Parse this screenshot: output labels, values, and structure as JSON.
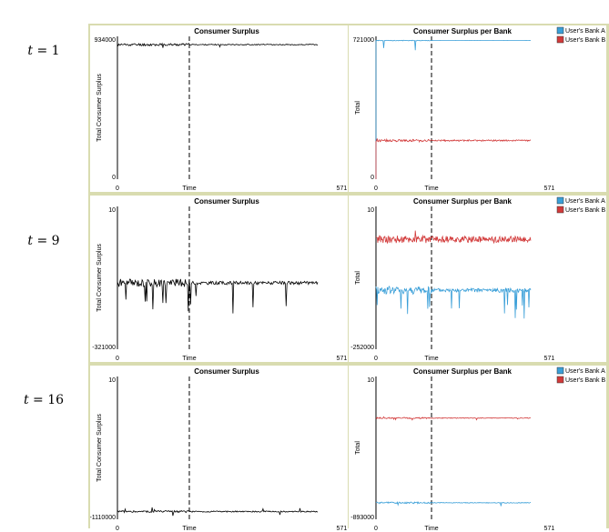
{
  "row_labels": [
    {
      "var": "t",
      "eq": " = ",
      "num": "1"
    },
    {
      "var": "t",
      "eq": " = ",
      "num": "9"
    },
    {
      "var": "t",
      "eq": " = ",
      "num": "16"
    }
  ],
  "chart_data": [
    {
      "type": "line",
      "row": 0,
      "col": 0,
      "title": "Consumer Surplus",
      "xlabel": "Time",
      "ylabel": "Total Consumer Surplus",
      "xlim": [
        0,
        571
      ],
      "ylim": [
        0,
        934000
      ],
      "y_tick_labels": [
        "934000",
        "0"
      ],
      "x_tick_labels": [
        "0",
        "571"
      ],
      "marker_x": 205,
      "series": [
        {
          "name": "Total",
          "color": "#000000",
          "start": 0,
          "level": 880000,
          "noise": 8000,
          "spike_prob": 0.03,
          "spike_mag": 40000,
          "spike_dir": "down",
          "after_factor": 0.4,
          "seed": 11
        }
      ]
    },
    {
      "type": "line",
      "row": 0,
      "col": 1,
      "title": "Consumer Surplus per Bank",
      "xlabel": "Time",
      "ylabel": "Total",
      "xlim": [
        0,
        571
      ],
      "ylim": [
        0,
        721000
      ],
      "y_tick_labels": [
        "721000",
        "0"
      ],
      "x_tick_labels": [
        "0",
        "571"
      ],
      "marker_x": 205,
      "legend": [
        "User's Bank A",
        "User's Bank B"
      ],
      "series": [
        {
          "name": "User's Bank A",
          "color": "#3a9fd8",
          "start": 0,
          "level": 700000,
          "noise": 1500,
          "spike_prob": 0.025,
          "spike_mag": 60000,
          "spike_dir": "down",
          "after_factor": 0.1,
          "seed": 21
        },
        {
          "name": "User's Bank B",
          "color": "#d23a3a",
          "start": 0,
          "level": 195000,
          "noise": 6000,
          "spike_prob": 0.02,
          "spike_mag": 12000,
          "spike_dir": "both",
          "after_factor": 0.6,
          "seed": 22
        }
      ]
    },
    {
      "type": "line",
      "row": 1,
      "col": 0,
      "title": "Consumer Surplus",
      "xlabel": "Time",
      "ylabel": "Total Consumer Surplus",
      "xlim": [
        0,
        571
      ],
      "ylim": [
        -321000,
        10
      ],
      "y_tick_labels": [
        "10",
        "-321000"
      ],
      "x_tick_labels": [
        "0",
        "571"
      ],
      "marker_x": 205,
      "series": [
        {
          "name": "Total",
          "color": "#000000",
          "level": -172000,
          "noise": 9000,
          "spike_prob": 0.07,
          "spike_mag": 70000,
          "spike_dir": "down",
          "after_factor": 0.4,
          "seed": 31
        }
      ]
    },
    {
      "type": "line",
      "row": 1,
      "col": 1,
      "title": "Consumer Surplus per Bank",
      "xlabel": "Time",
      "ylabel": "Total",
      "xlim": [
        0,
        571
      ],
      "ylim": [
        -252000,
        10
      ],
      "y_tick_labels": [
        "10",
        "-252000"
      ],
      "x_tick_labels": [
        "0",
        "571"
      ],
      "marker_x": 205,
      "legend": [
        "User's Bank A",
        "User's Bank B"
      ],
      "series": [
        {
          "name": "User's Bank A",
          "color": "#3a9fd8",
          "level": -148000,
          "noise": 7000,
          "spike_prob": 0.07,
          "spike_mag": 55000,
          "spike_dir": "down",
          "after_factor": 0.5,
          "seed": 41
        },
        {
          "name": "User's Bank B",
          "color": "#d23a3a",
          "level": -58000,
          "noise": 7000,
          "spike_prob": 0.05,
          "spike_mag": 15000,
          "spike_dir": "both",
          "after_factor": 0.8,
          "seed": 42
        }
      ]
    },
    {
      "type": "line",
      "row": 2,
      "col": 0,
      "title": "Consumer Surplus",
      "xlabel": "Time",
      "ylabel": "Total Consumer Surplus",
      "xlim": [
        0,
        571
      ],
      "ylim": [
        -1110000,
        10
      ],
      "y_tick_labels": [
        "10",
        "-1110000"
      ],
      "x_tick_labels": [
        "0",
        "571"
      ],
      "marker_x": 205,
      "series": [
        {
          "name": "Total",
          "color": "#000000",
          "level": -1050000,
          "noise": 8000,
          "spike_prob": 0.04,
          "spike_mag": 30000,
          "spike_dir": "both",
          "after_factor": 0.6,
          "seed": 51
        }
      ]
    },
    {
      "type": "line",
      "row": 2,
      "col": 1,
      "title": "Consumer Surplus per Bank",
      "xlabel": "Time",
      "ylabel": "Total",
      "xlim": [
        0,
        571
      ],
      "ylim": [
        -893000,
        10
      ],
      "y_tick_labels": [
        "10",
        "-893000"
      ],
      "x_tick_labels": [
        "0",
        "571"
      ],
      "marker_x": 205,
      "legend": [
        "User's Bank A",
        "User's Bank B"
      ],
      "series": [
        {
          "name": "User's Bank A",
          "color": "#3a9fd8",
          "level": -790000,
          "noise": 5000,
          "spike_prob": 0.04,
          "spike_mag": 25000,
          "spike_dir": "down",
          "after_factor": 0.4,
          "seed": 61
        },
        {
          "name": "User's Bank B",
          "color": "#d23a3a",
          "level": -260000,
          "noise": 4000,
          "spike_prob": 0.03,
          "spike_mag": 12000,
          "spike_dir": "both",
          "after_factor": 0.5,
          "seed": 62
        }
      ]
    }
  ]
}
